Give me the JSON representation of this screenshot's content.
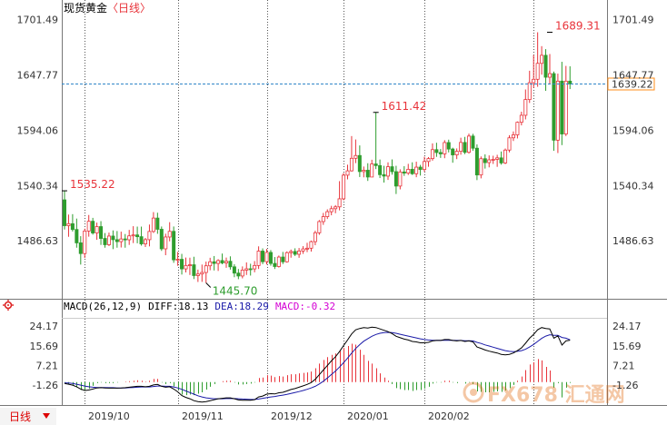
{
  "title_text": "现货黄金",
  "period_text": "〈日线〉",
  "bottom_tab": "日线",
  "watermark": "FX678 汇通网",
  "colors": {
    "up": "#e8333a",
    "down": "#2e9d2e",
    "grid": "#555555",
    "ref_line": "#2f86c8",
    "axis_text": "#333333",
    "diff_line": "#000000",
    "dea_line": "#1a1aa8",
    "macd_pink": "#d400d4",
    "price_box": "#ff8c1a"
  },
  "chart_data": [
    {
      "type": "candlestick",
      "title": "现货黄金〈日线〉",
      "y_ticks": [
        "1701.49",
        "1647.77",
        "1594.06",
        "1540.34",
        "1486.63"
      ],
      "y_tick_values": [
        1701.49,
        1647.77,
        1594.06,
        1540.34,
        1486.63
      ],
      "ylim": [
        1432.9,
        1713.6
      ],
      "last_price": "1639.22",
      "last_price_value": 1639.22,
      "annotations": [
        {
          "text": "1535.22",
          "bar": 0,
          "value": 1535.22,
          "kind": "high"
        },
        {
          "text": "1445.70",
          "bar": 35,
          "value": 1445.7,
          "kind": "low"
        },
        {
          "text": "1611.42",
          "bar": 77,
          "value": 1611.42,
          "kind": "high"
        },
        {
          "text": "1689.31",
          "bar": 120,
          "value": 1689.31,
          "kind": "high"
        }
      ],
      "x_labels": [
        "2019/10",
        "2019/11",
        "2019/12",
        "2020/01",
        "2020/02"
      ],
      "x_label_bars": [
        5,
        26,
        47,
        68,
        89
      ],
      "candles": [
        [
          1526.4,
          1535.2,
          1497.6,
          1501.3
        ],
        [
          1501.3,
          1512.1,
          1490.5,
          1503.2
        ],
        [
          1503.2,
          1512.5,
          1495.6,
          1497.6
        ],
        [
          1497.6,
          1508.2,
          1479.9,
          1484.6
        ],
        [
          1484.6,
          1491.1,
          1463.5,
          1474.2
        ],
        [
          1474.2,
          1498.4,
          1469.9,
          1496.1
        ],
        [
          1496.1,
          1511.7,
          1490.6,
          1505.6
        ],
        [
          1505.6,
          1508.9,
          1492.6,
          1494.2
        ],
        [
          1494.2,
          1504.3,
          1487.6,
          1500.4
        ],
        [
          1500.4,
          1505.7,
          1482.6,
          1488.9
        ],
        [
          1488.9,
          1494.1,
          1479.9,
          1482.8
        ],
        [
          1482.8,
          1494.6,
          1481.5,
          1491.2
        ],
        [
          1491.2,
          1496.7,
          1478.5,
          1487.7
        ],
        [
          1487.7,
          1496.1,
          1479.9,
          1485.8
        ],
        [
          1485.8,
          1495.5,
          1480.1,
          1488.4
        ],
        [
          1488.4,
          1493.2,
          1479.9,
          1487.6
        ],
        [
          1487.6,
          1497.2,
          1482.6,
          1491.4
        ],
        [
          1491.4,
          1500.8,
          1484.4,
          1492.3
        ],
        [
          1492.3,
          1500.4,
          1484.2,
          1490.6
        ],
        [
          1490.6,
          1500.4,
          1481.9,
          1483.6
        ],
        [
          1483.6,
          1489.4,
          1480.6,
          1487.7
        ],
        [
          1487.7,
          1502.4,
          1481.2,
          1495.7
        ],
        [
          1495.7,
          1514.5,
          1494.2,
          1508.7
        ],
        [
          1508.7,
          1513.9,
          1493.4,
          1497.8
        ],
        [
          1497.8,
          1500.5,
          1476.8,
          1478.8
        ],
        [
          1478.8,
          1493.5,
          1472.6,
          1490.3
        ],
        [
          1490.3,
          1504.7,
          1486.1,
          1495.8
        ],
        [
          1495.8,
          1500.5,
          1465.2,
          1468.1
        ],
        [
          1468.1,
          1475.8,
          1462.3,
          1468.6
        ],
        [
          1468.6,
          1473.9,
          1453.8,
          1459.3
        ],
        [
          1459.3,
          1470.3,
          1455.8,
          1462.6
        ],
        [
          1462.6,
          1470.2,
          1453.4,
          1463.3
        ],
        [
          1463.3,
          1471.1,
          1449.4,
          1452.8
        ],
        [
          1452.8,
          1458.6,
          1446.6,
          1454.3
        ],
        [
          1454.3,
          1463.5,
          1446.7,
          1455.8
        ],
        [
          1455.8,
          1466.4,
          1445.7,
          1462.3
        ],
        [
          1462.3,
          1470.1,
          1458.0,
          1466.2
        ],
        [
          1466.2,
          1471.8,
          1457.8,
          1464.6
        ],
        [
          1464.6,
          1468.7,
          1457.3,
          1467.4
        ],
        [
          1467.4,
          1474.2,
          1463.8,
          1465.1
        ],
        [
          1465.1,
          1470.3,
          1460.4,
          1466.7
        ],
        [
          1466.7,
          1471.5,
          1458.6,
          1461.3
        ],
        [
          1461.3,
          1463.8,
          1451.2,
          1455.2
        ],
        [
          1455.2,
          1459.2,
          1449.3,
          1452.4
        ],
        [
          1452.4,
          1461.7,
          1450.1,
          1458.1
        ],
        [
          1458.1,
          1465.6,
          1453.4,
          1459.4
        ],
        [
          1459.4,
          1464.3,
          1452.8,
          1459.3
        ],
        [
          1459.3,
          1466.9,
          1456.0,
          1462.6
        ],
        [
          1462.6,
          1481.2,
          1459.2,
          1476.6
        ],
        [
          1476.6,
          1479.2,
          1463.9,
          1466.3
        ],
        [
          1466.3,
          1478.7,
          1463.6,
          1475.3
        ],
        [
          1475.3,
          1477.6,
          1462.4,
          1464.6
        ],
        [
          1464.6,
          1470.8,
          1459.2,
          1461.6
        ],
        [
          1461.6,
          1472.3,
          1460.6,
          1470.8
        ],
        [
          1470.8,
          1475.8,
          1464.0,
          1466.2
        ],
        [
          1466.2,
          1476.3,
          1465.4,
          1475.1
        ],
        [
          1475.1,
          1478.1,
          1470.2,
          1476.2
        ],
        [
          1476.2,
          1479.3,
          1471.8,
          1473.5
        ],
        [
          1473.5,
          1479.6,
          1470.1,
          1476.7
        ],
        [
          1476.7,
          1481.4,
          1473.9,
          1478.7
        ],
        [
          1478.7,
          1484.6,
          1475.6,
          1479.4
        ],
        [
          1479.4,
          1486.8,
          1476.1,
          1485.8
        ],
        [
          1485.8,
          1496.4,
          1482.3,
          1494.4
        ],
        [
          1494.4,
          1506.8,
          1492.4,
          1505.3
        ],
        [
          1505.3,
          1513.7,
          1502.1,
          1510.1
        ],
        [
          1510.1,
          1517.2,
          1507.8,
          1514.9
        ],
        [
          1514.9,
          1520.6,
          1511.4,
          1517.8
        ],
        [
          1517.8,
          1521.3,
          1513.4,
          1519.6
        ],
        [
          1519.6,
          1544.6,
          1516.2,
          1527.4
        ],
        [
          1527.4,
          1552.5,
          1526.0,
          1550.4
        ],
        [
          1550.4,
          1560.6,
          1546.3,
          1554.6
        ],
        [
          1554.6,
          1588.4,
          1553.9,
          1566.8
        ],
        [
          1566.8,
          1585.1,
          1562.1,
          1569.5
        ],
        [
          1569.5,
          1579.3,
          1548.6,
          1553.9
        ],
        [
          1553.9,
          1558.8,
          1548.3,
          1555.2
        ],
        [
          1555.2,
          1562.0,
          1544.8,
          1548.6
        ],
        [
          1548.6,
          1565.4,
          1548.5,
          1561.3
        ],
        [
          1561.3,
          1611.4,
          1556.3,
          1559.7
        ],
        [
          1559.7,
          1565.6,
          1547.6,
          1550.9
        ],
        [
          1550.9,
          1559.5,
          1543.2,
          1549.5
        ],
        [
          1549.5,
          1562.9,
          1545.8,
          1558.6
        ],
        [
          1558.6,
          1565.7,
          1550.9,
          1553.8
        ],
        [
          1553.8,
          1559.5,
          1532.1,
          1539.8
        ],
        [
          1539.8,
          1556.1,
          1536.6,
          1553.5
        ],
        [
          1553.5,
          1559.1,
          1549.7,
          1552.4
        ],
        [
          1552.4,
          1561.4,
          1550.6,
          1556.1
        ],
        [
          1556.1,
          1562.9,
          1550.6,
          1551.8
        ],
        [
          1551.8,
          1563.5,
          1548.4,
          1558.2
        ],
        [
          1558.2,
          1560.4,
          1550.0,
          1555.9
        ],
        [
          1555.9,
          1568.3,
          1553.6,
          1563.7
        ],
        [
          1563.7,
          1567.9,
          1558.6,
          1566.5
        ],
        [
          1566.5,
          1581.3,
          1564.5,
          1575.2
        ],
        [
          1575.2,
          1581.9,
          1568.2,
          1572.4
        ],
        [
          1572.4,
          1575.8,
          1567.2,
          1571.1
        ],
        [
          1571.1,
          1584.4,
          1566.9,
          1582.1
        ],
        [
          1582.1,
          1584.9,
          1572.5,
          1575.8
        ],
        [
          1575.8,
          1577.1,
          1562.5,
          1570.1
        ],
        [
          1570.1,
          1576.4,
          1566.0,
          1573.6
        ],
        [
          1573.6,
          1586.8,
          1570.3,
          1582.2
        ],
        [
          1582.2,
          1587.6,
          1570.8,
          1572.6
        ],
        [
          1572.6,
          1590.8,
          1571.4,
          1588.4
        ],
        [
          1588.4,
          1590.6,
          1574.1,
          1576.6
        ],
        [
          1576.6,
          1580.3,
          1545.6,
          1550.6
        ],
        [
          1550.6,
          1568.6,
          1547.3,
          1566.4
        ],
        [
          1566.4,
          1570.6,
          1556.8,
          1562.6
        ],
        [
          1562.6,
          1569.6,
          1558.0,
          1565.3
        ],
        [
          1565.3,
          1569.3,
          1561.3,
          1565.8
        ],
        [
          1565.8,
          1570.2,
          1558.5,
          1567.2
        ],
        [
          1567.2,
          1573.4,
          1560.6,
          1562.3
        ],
        [
          1562.3,
          1576.3,
          1561.2,
          1574.8
        ],
        [
          1574.8,
          1589.2,
          1572.6,
          1586.7
        ],
        [
          1586.7,
          1592.9,
          1583.6,
          1589.6
        ],
        [
          1589.6,
          1602.6,
          1586.1,
          1601.8
        ],
        [
          1601.8,
          1612.1,
          1598.8,
          1608.6
        ],
        [
          1608.6,
          1633.7,
          1604.6,
          1623.9
        ],
        [
          1623.9,
          1651.9,
          1620.6,
          1640.3
        ],
        [
          1640.3,
          1667.2,
          1635.2,
          1643.6
        ],
        [
          1643.6,
          1689.3,
          1636.3,
          1659.1
        ],
        [
          1659.1,
          1675.8,
          1648.1,
          1666.9
        ],
        [
          1666.9,
          1672.9,
          1632.4,
          1645.6
        ],
        [
          1645.6,
          1668.1,
          1639.5,
          1649.1
        ],
        [
          1649.1,
          1651.1,
          1574.1,
          1584.4
        ],
        [
          1584.4,
          1649.1,
          1571.9,
          1641.8
        ],
        [
          1641.8,
          1660.6,
          1579.6,
          1590.4
        ],
        [
          1590.4,
          1656.6,
          1588.4,
          1641.8
        ],
        [
          1641.8,
          1656.2,
          1634.1,
          1639.2
        ]
      ]
    },
    {
      "type": "macd",
      "label": "MACD(26,12,9)",
      "diff_label": "DIFF:18.13",
      "dea_label": "DEA:18.29",
      "macd_label": "MACD:-0.32",
      "y_ticks": [
        "24.17",
        "15.69",
        "7.21",
        "-1.26"
      ],
      "y_tick_values": [
        24.17,
        15.69,
        7.21,
        -1.26
      ],
      "ylim": [
        -9.5,
        27.0
      ],
      "diff": [
        -0.6,
        -0.9,
        -1.3,
        -2.0,
        -3.0,
        -3.6,
        -3.4,
        -3.0,
        -2.5,
        -2.4,
        -2.5,
        -2.6,
        -2.6,
        -2.6,
        -2.5,
        -2.4,
        -2.2,
        -2.0,
        -1.8,
        -1.8,
        -2.0,
        -1.8,
        -1.2,
        -1.0,
        -1.8,
        -2.2,
        -2.0,
        -3.0,
        -4.2,
        -5.8,
        -6.6,
        -7.2,
        -8.0,
        -8.4,
        -8.6,
        -8.4,
        -8.0,
        -7.6,
        -7.2,
        -7.0,
        -6.8,
        -6.8,
        -7.2,
        -7.7,
        -7.8,
        -7.8,
        -7.8,
        -7.6,
        -6.4,
        -6.0,
        -5.2,
        -5.0,
        -5.1,
        -4.6,
        -4.4,
        -3.8,
        -3.2,
        -2.8,
        -2.2,
        -1.6,
        -1.0,
        -0.2,
        1.2,
        3.2,
        5.2,
        7.2,
        9.2,
        11.0,
        13.2,
        15.8,
        18.2,
        20.8,
        22.6,
        23.2,
        23.6,
        23.4,
        23.8,
        23.6,
        23.0,
        22.4,
        21.8,
        21.0,
        19.8,
        19.2,
        18.6,
        18.2,
        17.6,
        17.4,
        17.0,
        17.0,
        17.2,
        17.8,
        18.0,
        18.0,
        18.4,
        18.4,
        18.0,
        17.8,
        18.0,
        17.6,
        17.8,
        17.4,
        15.2,
        14.6,
        13.9,
        13.4,
        13.0,
        12.6,
        12.0,
        11.8,
        12.0,
        12.6,
        13.6,
        14.8,
        16.8,
        19.0,
        20.6,
        22.6,
        23.6,
        23.2,
        23.0,
        19.0,
        20.0,
        16.0,
        17.8,
        18.13
      ],
      "dea": [
        -0.3,
        -0.4,
        -0.6,
        -0.9,
        -1.3,
        -1.7,
        -2.0,
        -2.2,
        -2.3,
        -2.3,
        -2.3,
        -2.4,
        -2.4,
        -2.5,
        -2.5,
        -2.5,
        -2.4,
        -2.3,
        -2.2,
        -2.1,
        -2.1,
        -2.1,
        -1.9,
        -1.7,
        -1.7,
        -1.8,
        -1.8,
        -2.1,
        -2.5,
        -3.1,
        -3.8,
        -4.5,
        -5.2,
        -5.9,
        -6.4,
        -6.8,
        -7.0,
        -7.2,
        -7.2,
        -7.2,
        -7.1,
        -7.1,
        -7.1,
        -7.2,
        -7.3,
        -7.4,
        -7.5,
        -7.5,
        -7.3,
        -7.0,
        -6.7,
        -6.4,
        -6.2,
        -5.9,
        -5.6,
        -5.3,
        -4.9,
        -4.5,
        -4.1,
        -3.6,
        -3.1,
        -2.5,
        -1.8,
        -0.8,
        0.4,
        1.8,
        3.3,
        4.8,
        6.5,
        8.4,
        10.4,
        12.5,
        14.5,
        16.2,
        17.7,
        18.8,
        19.8,
        20.6,
        21.1,
        21.4,
        21.5,
        21.4,
        21.1,
        20.7,
        20.3,
        19.9,
        19.5,
        19.1,
        18.7,
        18.4,
        18.2,
        18.1,
        18.1,
        18.1,
        18.1,
        18.1,
        18.1,
        18.0,
        18.0,
        17.9,
        17.9,
        17.8,
        17.2,
        16.7,
        16.1,
        15.6,
        15.1,
        14.6,
        14.1,
        13.6,
        13.3,
        13.2,
        13.3,
        13.6,
        14.2,
        15.2,
        16.3,
        17.6,
        18.9,
        19.9,
        20.5,
        20.2,
        20.2,
        19.3,
        19.0,
        18.29
      ],
      "macd": [
        -0.6,
        -1.0,
        -1.4,
        -2.2,
        -3.4,
        -3.8,
        -2.8,
        -1.6,
        -0.4,
        -0.2,
        -0.4,
        -0.4,
        -0.4,
        -0.2,
        0.0,
        0.2,
        0.4,
        0.6,
        0.8,
        0.6,
        0.2,
        0.6,
        1.4,
        1.4,
        -0.2,
        -0.8,
        -0.4,
        -1.8,
        -3.4,
        -5.4,
        -5.6,
        -5.4,
        -5.6,
        -5.0,
        -4.4,
        -3.2,
        -2.0,
        -0.8,
        0.0,
        0.4,
        0.6,
        0.6,
        -0.2,
        -1.0,
        -1.0,
        -0.8,
        -0.6,
        -0.2,
        1.8,
        2.0,
        3.0,
        2.8,
        2.2,
        2.6,
        2.4,
        3.0,
        3.4,
        3.4,
        3.8,
        4.0,
        4.2,
        4.6,
        6.0,
        8.0,
        9.6,
        10.8,
        11.8,
        12.4,
        13.4,
        14.8,
        15.6,
        16.6,
        16.2,
        14.0,
        11.8,
        9.2,
        8.0,
        6.0,
        3.8,
        2.0,
        0.6,
        -0.8,
        -2.6,
        -3.0,
        -3.4,
        -3.4,
        -3.8,
        -3.4,
        -3.4,
        -2.8,
        -2.0,
        -0.6,
        -0.2,
        -0.2,
        0.6,
        0.6,
        -0.2,
        -0.4,
        0.0,
        -0.6,
        -0.2,
        -0.8,
        -4.0,
        -4.2,
        -4.4,
        -4.4,
        -4.2,
        -4.0,
        -4.2,
        -3.6,
        -2.6,
        -1.2,
        0.6,
        2.4,
        5.2,
        7.6,
        8.6,
        10.0,
        9.4,
        6.6,
        5.0,
        -2.4,
        -0.4,
        -6.6,
        -2.4,
        -0.32
      ]
    }
  ]
}
